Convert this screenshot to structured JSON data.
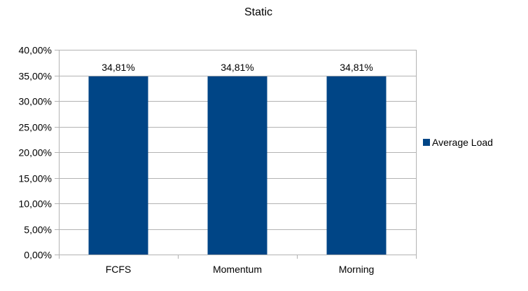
{
  "chart_data": {
    "type": "bar",
    "title": "Static",
    "categories": [
      "FCFS",
      "Momentum",
      "Morning"
    ],
    "series": [
      {
        "name": "Average Load",
        "values": [
          34.81,
          34.81,
          34.81
        ],
        "labels": [
          "34,81%",
          "34,81%",
          "34,81%"
        ],
        "color": "#004586"
      }
    ],
    "ylim": [
      0,
      40
    ],
    "yticks": [
      0,
      5,
      10,
      15,
      20,
      25,
      30,
      35,
      40
    ],
    "ytick_labels": [
      "0,00%",
      "5,00%",
      "10,00%",
      "15,00%",
      "20,00%",
      "25,00%",
      "30,00%",
      "35,00%",
      "40,00%"
    ],
    "xlabel": "",
    "ylabel": "",
    "grid": true,
    "legend_position": "right",
    "colors": {
      "grid": "#b3b3b3",
      "axis": "#b3b3b3",
      "text": "#000000"
    }
  }
}
